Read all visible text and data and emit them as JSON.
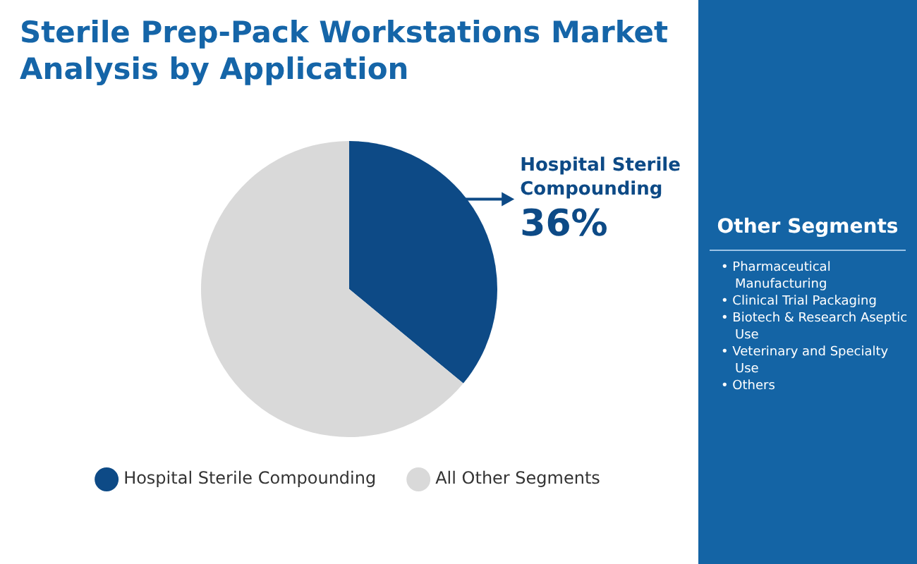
{
  "chart_data": {
    "type": "pie",
    "title": "Sterile Prep-Pack Workstations Market Analysis by Application",
    "categories": [
      "Hospital Sterile Compounding",
      "All Other Segments"
    ],
    "values": [
      36,
      64
    ],
    "colors": [
      "#0d4a86",
      "#d9d9d9"
    ],
    "value_labels": [
      "36%",
      null
    ],
    "legend": "bottom",
    "annotations": [
      "Other Segments",
      "• Pharmaceutical Manufacturing",
      "• Clinical Trial Packaging",
      "• Biotech & Research Aseptic Use",
      "• Veterinary and Specialty Use",
      "• Others"
    ]
  }
}
